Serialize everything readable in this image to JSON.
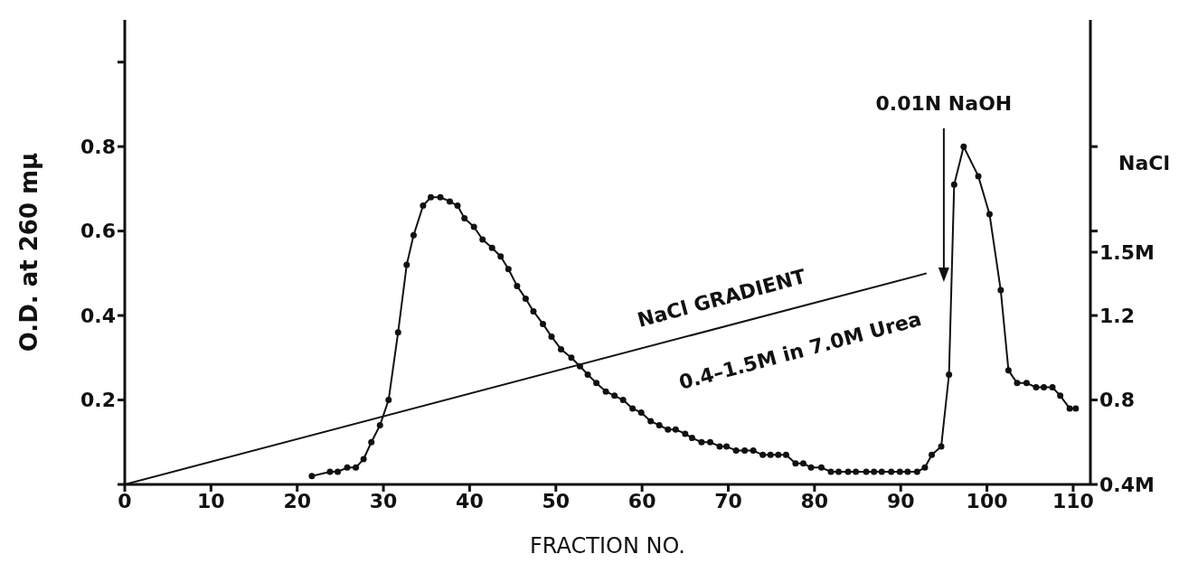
{
  "chart_data": {
    "type": "line",
    "xlabel": "FRACTION NO.",
    "ylabel": "O.D. at 260 mμ",
    "y2label": "NaCl",
    "xlim": [
      0,
      112
    ],
    "xticks": [
      0,
      10,
      20,
      30,
      40,
      50,
      60,
      70,
      80,
      90,
      100,
      110
    ],
    "ylim": [
      0,
      1.1
    ],
    "yticks": [
      {
        "value": 0,
        "label": null
      },
      0.2,
      0.4,
      0.6,
      0.8,
      {
        "value": 1.0,
        "label": null
      }
    ],
    "y2lim": [
      0.4,
      2.6
    ],
    "y2ticks": [
      {
        "value": 0.4,
        "label": "0.4M"
      },
      0.8,
      1.2,
      {
        "value": 1.5,
        "label": "1.5M"
      },
      {
        "value": 1.6,
        "label": null
      },
      {
        "value": 2.0,
        "label": null
      }
    ],
    "grid": false,
    "line_style": "solid",
    "series": [
      {
        "color": "#111111",
        "marker": "circle",
        "x": [
          21.7,
          23.8,
          24.7,
          25.8,
          26.8,
          27.7,
          28.6,
          29.6,
          30.6,
          31.7,
          32.7,
          33.5,
          34.6,
          35.5,
          36.6,
          37.7,
          38.6,
          39.4,
          40.5,
          41.5,
          42.6,
          43.6,
          44.5,
          45.5,
          46.5,
          47.4,
          48.5,
          49.5,
          50.6,
          51.8,
          52.8,
          53.7,
          54.7,
          55.8,
          56.8,
          57.8,
          58.9,
          59.9,
          61.0,
          62.0,
          63.0,
          63.9,
          65.0,
          65.8,
          66.9,
          67.9,
          69.0,
          69.8,
          70.9,
          71.9,
          72.9,
          74.0,
          74.9,
          75.8,
          76.7,
          77.8,
          78.7,
          79.6,
          80.8,
          81.9,
          82.8,
          83.9,
          84.8,
          86.0,
          86.9,
          87.8,
          88.9,
          89.9,
          90.8,
          91.9,
          92.8,
          93.6,
          94.7,
          95.6,
          96.2,
          97.3,
          99.0,
          100.3,
          101.6,
          102.5,
          103.5,
          104.6,
          105.7,
          106.6,
          107.6,
          108.5,
          109.6,
          110.3
        ],
        "values": [
          0.02,
          0.03,
          0.03,
          0.04,
          0.04,
          0.06,
          0.1,
          0.14,
          0.2,
          0.36,
          0.52,
          0.59,
          0.66,
          0.68,
          0.68,
          0.67,
          0.66,
          0.63,
          0.61,
          0.58,
          0.56,
          0.54,
          0.51,
          0.47,
          0.44,
          0.41,
          0.38,
          0.35,
          0.32,
          0.3,
          0.28,
          0.26,
          0.24,
          0.22,
          0.21,
          0.2,
          0.18,
          0.17,
          0.15,
          0.14,
          0.13,
          0.13,
          0.12,
          0.11,
          0.1,
          0.1,
          0.09,
          0.09,
          0.08,
          0.08,
          0.08,
          0.07,
          0.07,
          0.07,
          0.07,
          0.05,
          0.05,
          0.04,
          0.04,
          0.03,
          0.03,
          0.03,
          0.03,
          0.03,
          0.03,
          0.03,
          0.03,
          0.03,
          0.03,
          0.03,
          0.04,
          0.07,
          0.09,
          0.26,
          0.71,
          0.8,
          0.73,
          0.64,
          0.46,
          0.27,
          0.24,
          0.24,
          0.23,
          0.23,
          0.23,
          0.21,
          0.18,
          0.18
        ]
      },
      {
        "color": "#111111",
        "marker": "none",
        "axis": "y2",
        "x": [
          0,
          93
        ],
        "values": [
          0.4,
          1.4
        ]
      }
    ],
    "annotations": [
      "NaCl GRADIENT",
      "0.4–1.5M in 7.0M Urea",
      {
        "text": "0.01N NaOH",
        "x": 95
      }
    ]
  }
}
